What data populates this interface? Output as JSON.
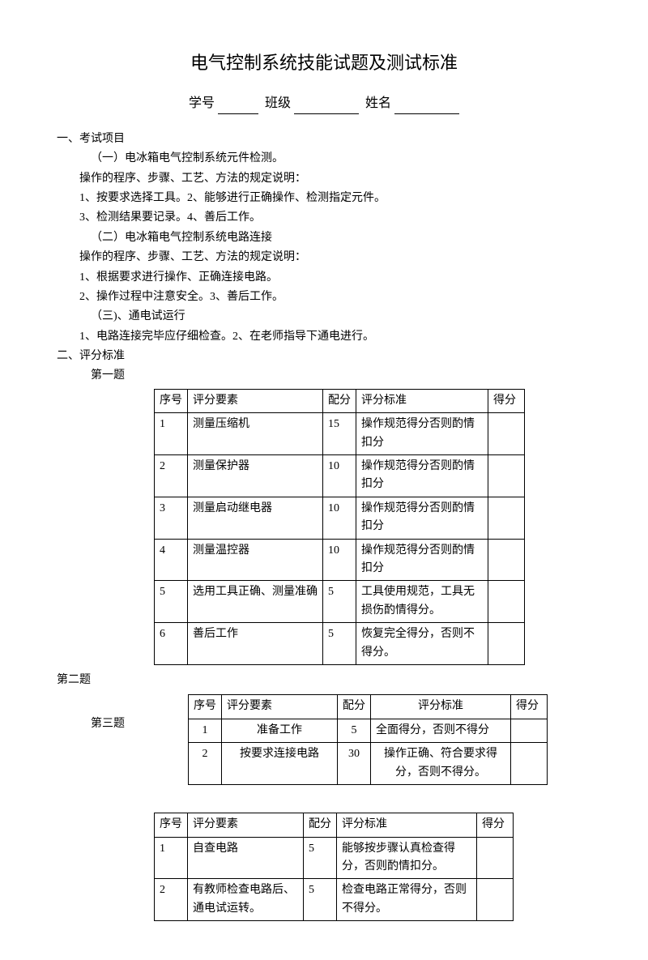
{
  "title": "电气控制系统技能试题及测试标准",
  "info": {
    "label_id": "学号",
    "label_class": "班级",
    "label_name": "姓名"
  },
  "sec1": {
    "heading": "一、考试项目",
    "p1": "（一）电冰箱电气控制系统元件检测。",
    "p2": "操作的程序、步骤、工艺、方法的规定说明：",
    "p3": "1、按要求选择工具。2、能够进行正确操作、检测指定元件。",
    "p4": "3、检测结果要记录。4、善后工作。",
    "p5": "（二）电冰箱电气控制系统电路连接",
    "p6": "操作的程序、步骤、工艺、方法的规定说明：",
    "p7": "1、根据要求进行操作、正确连接电路。",
    "p8": "2、操作过程中注意安全。3、善后工作。",
    "p9": "（三)、通电试运行",
    "p10": "1、电路连接完毕应仔细检查。2、在老师指导下通电进行。"
  },
  "sec2": {
    "heading": "二、评分标准",
    "q1_label": "第一题",
    "q2_label": "第二题",
    "q3_label": "第三题"
  },
  "headers": {
    "seq": "序号",
    "elem": "评分要素",
    "pts": "配分",
    "std": "评分标准",
    "score": "得分"
  },
  "t1": {
    "r1": {
      "seq": "1",
      "elem": "测量压缩机",
      "pts": "15",
      "std": "操作规范得分否则酌情扣分"
    },
    "r2": {
      "seq": "2",
      "elem": "测量保护器",
      "pts": "10",
      "std": "操作规范得分否则酌情扣分"
    },
    "r3": {
      "seq": "3",
      "elem": "测量启动继电器",
      "pts": "10",
      "std": "操作规范得分否则酌情扣分"
    },
    "r4": {
      "seq": "4",
      "elem": "测量温控器",
      "pts": "10",
      "std": "操作规范得分否则酌情扣分"
    },
    "r5": {
      "seq": "5",
      "elem": "选用工具正确、测量准确",
      "pts": "5",
      "std": "工具使用规范，工具无损伤酌情得分。"
    },
    "r6": {
      "seq": "6",
      "elem": "善后工作",
      "pts": "5",
      "std": "恢复完全得分，否则不得分。"
    }
  },
  "t2": {
    "r1": {
      "seq": "1",
      "elem": "准备工作",
      "pts": "5",
      "std": "全面得分，否则不得分"
    },
    "r2": {
      "seq": "2",
      "elem": "按要求连接电路",
      "pts": "30",
      "std": "操作正确、符合要求得分，否则不得分。"
    }
  },
  "t3": {
    "r1": {
      "seq": "1",
      "elem": "自查电路",
      "pts": "5",
      "std": "能够按步骤认真检查得分，否则酌情扣分。"
    },
    "r2": {
      "seq": "2",
      "elem": "有教师检查电路后、通电试运转。",
      "pts": "5",
      "std": "检查电路正常得分，否则不得分。"
    }
  }
}
